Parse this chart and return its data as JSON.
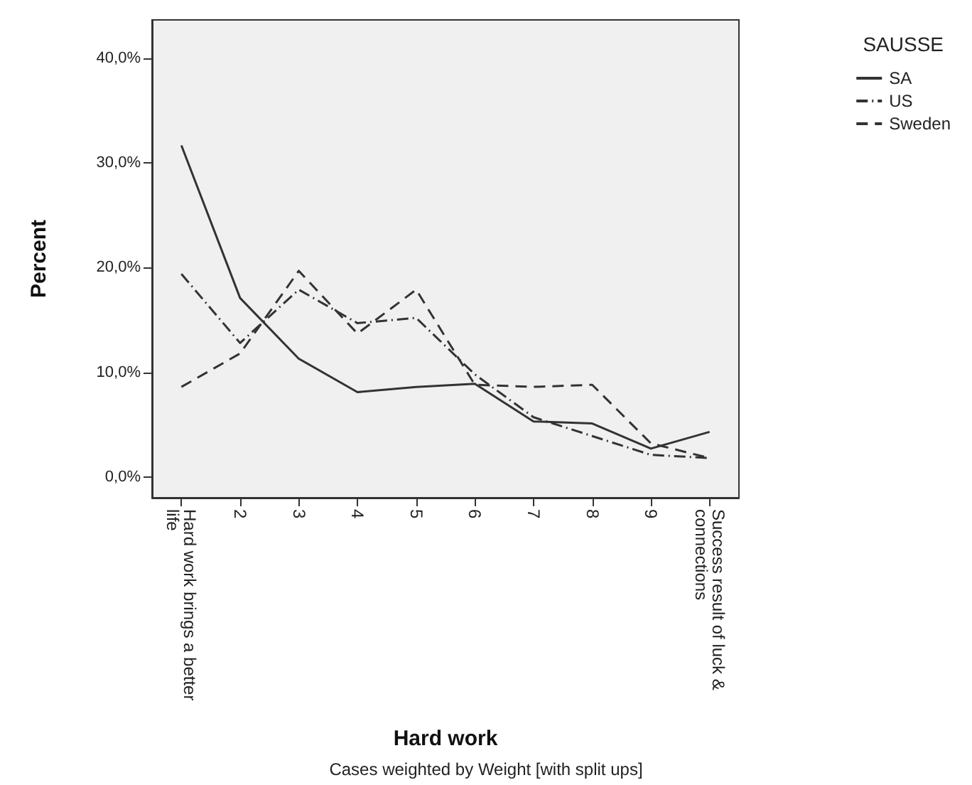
{
  "chart_data": {
    "type": "line",
    "xlabel": "Hard work",
    "ylabel": "Percent",
    "legend_title": "SAUSSE",
    "annotations": [
      "Cases weighted by Weight [with split ups]"
    ],
    "categories": [
      "Hard work brings a better life",
      "2",
      "3",
      "4",
      "5",
      "6",
      "7",
      "8",
      "9",
      "Success result of luck & connections"
    ],
    "series": [
      {
        "name": "SA",
        "color": "#333333",
        "line_style": "solid",
        "values": [
          31.7,
          17.1,
          11.3,
          8.1,
          8.6,
          8.9,
          5.3,
          5.1,
          2.7,
          4.3
        ]
      },
      {
        "name": "US",
        "color": "#333333",
        "line_style": "dashdot",
        "values": [
          19.4,
          12.8,
          17.9,
          14.7,
          15.2,
          9.8,
          5.7,
          3.9,
          2.1,
          1.8
        ]
      },
      {
        "name": "Sweden",
        "color": "#333333",
        "line_style": "dashed",
        "values": [
          8.6,
          11.8,
          19.7,
          13.7,
          17.9,
          8.8,
          8.6,
          8.8,
          3.2,
          1.8
        ]
      }
    ],
    "ylim": [
      -2,
      43.7
    ],
    "yticks": [
      {
        "value": 0,
        "label": "0,0%"
      },
      {
        "value": 10,
        "label": "10,0%"
      },
      {
        "value": 20,
        "label": "20,0%"
      },
      {
        "value": 30,
        "label": "30,0%"
      },
      {
        "value": 40,
        "label": "40,0%"
      }
    ],
    "grid": false,
    "legend": "top right",
    "marker": "none"
  }
}
